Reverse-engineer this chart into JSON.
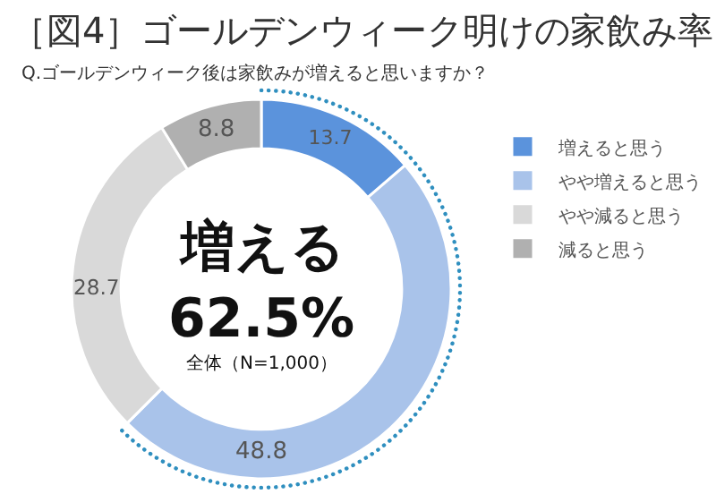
{
  "chart_data": {
    "type": "donut",
    "title": "［図4］ゴールデンウィーク明けの家飲み率",
    "subtitle": "Q.ゴールデンウィーク後は家飲みが増えると思いますか？",
    "categories": [
      "増えると思う",
      "やや増えると思う",
      "やや減ると思う",
      "減ると思う"
    ],
    "values": [
      13.7,
      48.8,
      28.7,
      8.8
    ],
    "colors": [
      "#5b93dc",
      "#a9c3ea",
      "#d9d9d9",
      "#b0b0b0"
    ],
    "annotations": [
      "増える",
      "62.5%",
      "全体（N=1,000）"
    ],
    "data_labels": true,
    "legend": "right"
  }
}
